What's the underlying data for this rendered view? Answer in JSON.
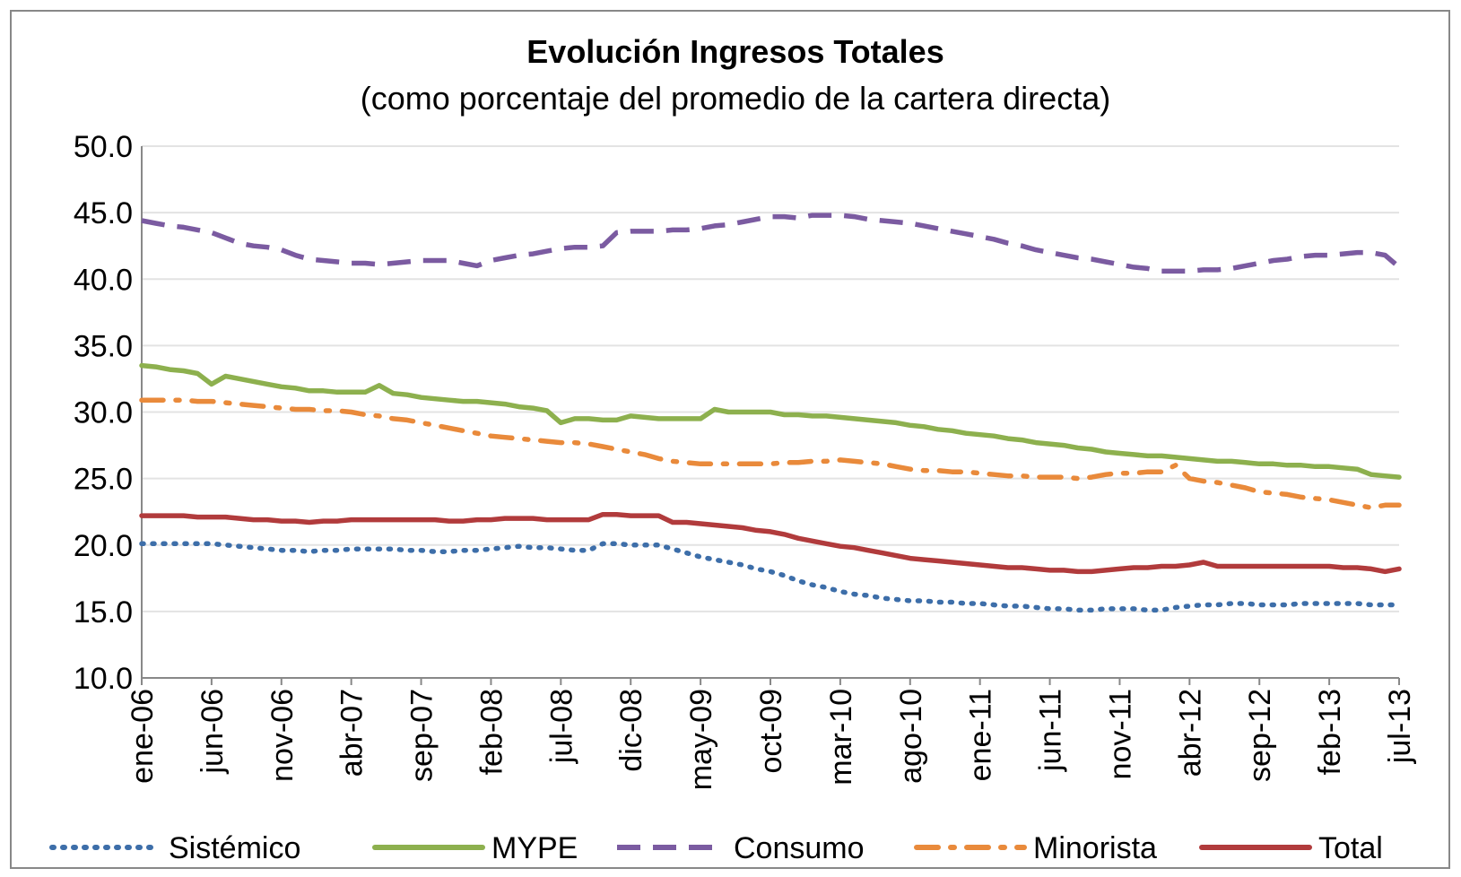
{
  "chart_data": {
    "type": "line",
    "title": "Evolución Ingresos Totales",
    "subtitle": "(como porcentaje del promedio de la cartera directa)",
    "categories": [
      "ene-06",
      null,
      null,
      null,
      null,
      "jun-06",
      null,
      null,
      null,
      null,
      "nov-06",
      null,
      null,
      null,
      null,
      "abr-07",
      null,
      null,
      null,
      null,
      "sep-07",
      null,
      null,
      null,
      null,
      "feb-08",
      null,
      null,
      null,
      null,
      "jul-08",
      null,
      null,
      null,
      null,
      "dic-08",
      null,
      null,
      null,
      null,
      "may-09",
      null,
      null,
      null,
      null,
      "oct-09",
      null,
      null,
      null,
      null,
      "mar-10",
      null,
      null,
      null,
      null,
      "ago-10",
      null,
      null,
      null,
      null,
      "ene-11",
      null,
      null,
      null,
      null,
      "jun-11",
      null,
      null,
      null,
      null,
      "nov-11",
      null,
      null,
      null,
      null,
      "abr-12",
      null,
      null,
      null,
      null,
      "sep-12",
      null,
      null,
      null,
      null,
      "feb-13",
      null,
      null,
      null,
      null,
      "jul-13"
    ],
    "ylim": [
      10,
      50
    ],
    "yticks": [
      {
        "value": 10,
        "label": "10.0"
      },
      {
        "value": 15,
        "label": "15.0"
      },
      {
        "value": 20,
        "label": "20.0"
      },
      {
        "value": 25,
        "label": "25.0"
      },
      {
        "value": 30,
        "label": "30.0"
      },
      {
        "value": 35,
        "label": "35.0"
      },
      {
        "value": 40,
        "label": "40.0"
      },
      {
        "value": 45,
        "label": "45.0"
      },
      {
        "value": 50,
        "label": "50.0"
      }
    ],
    "grid": true,
    "legend": "bottom",
    "series": [
      {
        "name": "Sistémico",
        "color": "#3d6ea9",
        "dash": "dotted",
        "values": [
          20.1,
          20.1,
          20.1,
          20.1,
          20.1,
          20.1,
          20.0,
          19.9,
          19.8,
          19.7,
          19.6,
          19.6,
          19.5,
          19.6,
          19.6,
          19.7,
          19.7,
          19.7,
          19.7,
          19.6,
          19.6,
          19.5,
          19.5,
          19.6,
          19.6,
          19.7,
          19.8,
          19.9,
          19.8,
          19.8,
          19.7,
          19.6,
          19.6,
          20.1,
          20.1,
          20.0,
          20.0,
          20.0,
          19.7,
          19.4,
          19.1,
          18.9,
          18.7,
          18.5,
          18.2,
          18.0,
          17.7,
          17.3,
          17.0,
          16.8,
          16.5,
          16.3,
          16.2,
          16.0,
          15.9,
          15.8,
          15.8,
          15.7,
          15.7,
          15.6,
          15.6,
          15.5,
          15.4,
          15.4,
          15.3,
          15.2,
          15.2,
          15.1,
          15.1,
          15.2,
          15.2,
          15.2,
          15.1,
          15.1,
          15.3,
          15.4,
          15.5,
          15.5,
          15.6,
          15.6,
          15.5,
          15.5,
          15.5,
          15.6,
          15.6,
          15.6,
          15.6,
          15.6,
          15.5,
          15.5,
          15.5
        ]
      },
      {
        "name": "MYPE",
        "color": "#8db04e",
        "dash": "solid",
        "values": [
          33.5,
          33.4,
          33.2,
          33.1,
          32.9,
          32.1,
          32.7,
          32.5,
          32.3,
          32.1,
          31.9,
          31.8,
          31.6,
          31.6,
          31.5,
          31.5,
          31.5,
          32.0,
          31.4,
          31.3,
          31.1,
          31.0,
          30.9,
          30.8,
          30.8,
          30.7,
          30.6,
          30.4,
          30.3,
          30.1,
          29.2,
          29.5,
          29.5,
          29.4,
          29.4,
          29.7,
          29.6,
          29.5,
          29.5,
          29.5,
          29.5,
          30.2,
          30.0,
          30.0,
          30.0,
          30.0,
          29.8,
          29.8,
          29.7,
          29.7,
          29.6,
          29.5,
          29.4,
          29.3,
          29.2,
          29.0,
          28.9,
          28.7,
          28.6,
          28.4,
          28.3,
          28.2,
          28.0,
          27.9,
          27.7,
          27.6,
          27.5,
          27.3,
          27.2,
          27.0,
          26.9,
          26.8,
          26.7,
          26.7,
          26.6,
          26.5,
          26.4,
          26.3,
          26.3,
          26.2,
          26.1,
          26.1,
          26.0,
          26.0,
          25.9,
          25.9,
          25.8,
          25.7,
          25.3,
          25.2,
          25.1
        ]
      },
      {
        "name": "Consumo",
        "color": "#7b5ba1",
        "dash": "dashed",
        "values": [
          44.4,
          44.2,
          44.0,
          43.9,
          43.7,
          43.5,
          43.1,
          42.7,
          42.5,
          42.4,
          42.2,
          41.8,
          41.5,
          41.4,
          41.3,
          41.2,
          41.2,
          41.1,
          41.2,
          41.3,
          41.4,
          41.4,
          41.4,
          41.2,
          41.0,
          41.4,
          41.6,
          41.8,
          41.9,
          42.1,
          42.3,
          42.4,
          42.4,
          42.5,
          43.5,
          43.6,
          43.6,
          43.6,
          43.7,
          43.7,
          43.8,
          44.0,
          44.1,
          44.3,
          44.5,
          44.7,
          44.7,
          44.6,
          44.8,
          44.8,
          44.8,
          44.7,
          44.5,
          44.4,
          44.3,
          44.2,
          44.0,
          43.8,
          43.6,
          43.4,
          43.2,
          43.0,
          42.7,
          42.5,
          42.2,
          42.0,
          41.8,
          41.6,
          41.5,
          41.3,
          41.1,
          40.9,
          40.8,
          40.6,
          40.6,
          40.6,
          40.7,
          40.7,
          40.8,
          41.0,
          41.2,
          41.4,
          41.5,
          41.7,
          41.8,
          41.8,
          41.9,
          42.0,
          42.0,
          41.8,
          40.9
        ]
      },
      {
        "name": "Minorista",
        "color": "#e98a3b",
        "dash": "dashdot",
        "values": [
          30.9,
          30.9,
          30.9,
          30.9,
          30.8,
          30.8,
          30.7,
          30.6,
          30.5,
          30.4,
          30.3,
          30.2,
          30.2,
          30.1,
          30.1,
          30.0,
          29.8,
          29.7,
          29.5,
          29.4,
          29.2,
          29.0,
          28.8,
          28.6,
          28.4,
          28.2,
          28.1,
          28.0,
          27.9,
          27.8,
          27.7,
          27.7,
          27.6,
          27.4,
          27.2,
          27.0,
          26.8,
          26.5,
          26.3,
          26.2,
          26.1,
          26.1,
          26.1,
          26.1,
          26.1,
          26.1,
          26.2,
          26.2,
          26.3,
          26.3,
          26.4,
          26.3,
          26.2,
          26.1,
          25.9,
          25.7,
          25.6,
          25.6,
          25.5,
          25.5,
          25.4,
          25.3,
          25.2,
          25.2,
          25.1,
          25.1,
          25.1,
          25.0,
          25.1,
          25.3,
          25.4,
          25.4,
          25.5,
          25.5,
          26.0,
          25.0,
          24.8,
          24.7,
          24.5,
          24.3,
          24.0,
          23.9,
          23.8,
          23.6,
          23.5,
          23.4,
          23.2,
          23.0,
          22.8,
          23.0,
          23.0
        ]
      },
      {
        "name": "Total",
        "color": "#b13b3c",
        "dash": "solid",
        "values": [
          22.2,
          22.2,
          22.2,
          22.2,
          22.1,
          22.1,
          22.1,
          22.0,
          21.9,
          21.9,
          21.8,
          21.8,
          21.7,
          21.8,
          21.8,
          21.9,
          21.9,
          21.9,
          21.9,
          21.9,
          21.9,
          21.9,
          21.8,
          21.8,
          21.9,
          21.9,
          22.0,
          22.0,
          22.0,
          21.9,
          21.9,
          21.9,
          21.9,
          22.3,
          22.3,
          22.2,
          22.2,
          22.2,
          21.7,
          21.7,
          21.6,
          21.5,
          21.4,
          21.3,
          21.1,
          21.0,
          20.8,
          20.5,
          20.3,
          20.1,
          19.9,
          19.8,
          19.6,
          19.4,
          19.2,
          19.0,
          18.9,
          18.8,
          18.7,
          18.6,
          18.5,
          18.4,
          18.3,
          18.3,
          18.2,
          18.1,
          18.1,
          18.0,
          18.0,
          18.1,
          18.2,
          18.3,
          18.3,
          18.4,
          18.4,
          18.5,
          18.7,
          18.4,
          18.4,
          18.4,
          18.4,
          18.4,
          18.4,
          18.4,
          18.4,
          18.4,
          18.3,
          18.3,
          18.2,
          18.0,
          18.2
        ]
      }
    ]
  }
}
